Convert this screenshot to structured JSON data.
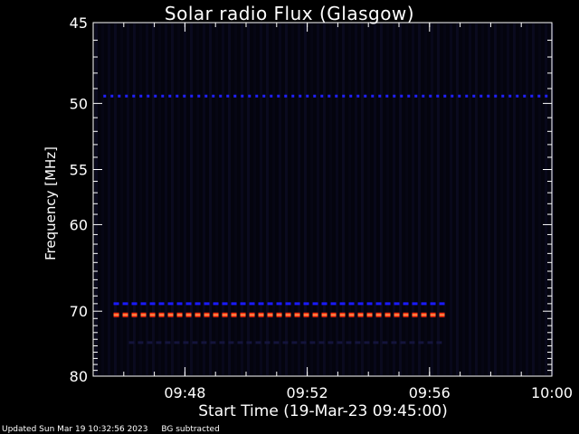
{
  "chart_data": {
    "type": "heatmap",
    "title": "Solar radio Flux (Glasgow)",
    "ylabel": "Frequency [MHz]",
    "xlabel": "Start Time (19-Mar-23 09:45:00)",
    "x_range": [
      "09:45:00",
      "10:00:00"
    ],
    "y_range_mhz": [
      45,
      80
    ],
    "y_scale": "reciprocal",
    "y_ticks": [
      45,
      50,
      55,
      60,
      70,
      80
    ],
    "x_ticks": [
      "09:48",
      "09:52",
      "09:56",
      "10:00"
    ],
    "features": [
      {
        "name": "50 MHz",
        "freq_mhz": 49.5,
        "t_start": "09:45:20",
        "t_end": "10:00:00",
        "color": "#2020ff",
        "pattern": "dashed"
      },
      {
        "name": "69 MHz",
        "freq_mhz": 69.0,
        "t_start": "09:45:40",
        "t_end": "09:56:30",
        "color": "#1a1aff",
        "pattern": "dashed"
      },
      {
        "name": "70.5 MHz",
        "freq_mhz": 70.5,
        "t_start": "09:45:40",
        "t_end": "09:56:30",
        "color": "#ff3010",
        "pattern": "dashed"
      },
      {
        "name": "75 MHz",
        "freq_mhz": 74.5,
        "t_start": "09:46:10",
        "t_end": "09:56:30",
        "color": "#14143c",
        "pattern": "dashed"
      }
    ],
    "grid": false
  },
  "footer": {
    "updated": "Updated Sun Mar 19 10:32:56 2023",
    "note": "BG subtracted"
  }
}
